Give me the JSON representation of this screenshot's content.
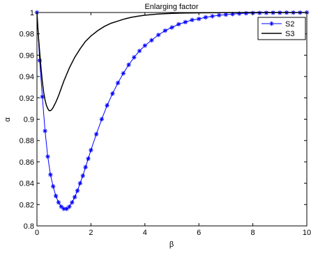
{
  "chart_data": {
    "type": "line",
    "title": "Enlarging factor",
    "xlabel": "β",
    "ylabel": "α",
    "xlim": [
      0,
      10
    ],
    "ylim": [
      0.8,
      1.0
    ],
    "xticks": [
      0,
      2,
      4,
      6,
      8,
      10
    ],
    "xtick_labels": [
      "0",
      "2",
      "4",
      "6",
      "8",
      "10"
    ],
    "yticks": [
      0.8,
      0.82,
      0.84,
      0.86,
      0.88,
      0.9,
      0.92,
      0.94,
      0.96,
      0.98,
      1.0
    ],
    "ytick_labels": [
      "0.8",
      "0.82",
      "0.84",
      "0.86",
      "0.88",
      "0.9",
      "0.92",
      "0.94",
      "0.96",
      "0.98",
      "1"
    ],
    "grid": false,
    "legend_position": "top-right",
    "series": [
      {
        "name": "S2",
        "color": "#0000ff",
        "marker": "asterisk",
        "x": [
          0,
          0.1,
          0.2,
          0.3,
          0.4,
          0.5,
          0.6,
          0.7,
          0.8,
          0.9,
          1.0,
          1.1,
          1.2,
          1.3,
          1.4,
          1.5,
          1.6,
          1.7,
          1.8,
          1.9,
          2.0,
          2.2,
          2.4,
          2.6,
          2.8,
          3.0,
          3.2,
          3.4,
          3.6,
          3.8,
          4.0,
          4.25,
          4.5,
          4.75,
          5.0,
          5.25,
          5.5,
          5.75,
          6.0,
          6.25,
          6.5,
          6.75,
          7.0,
          7.25,
          7.5,
          7.75,
          8.0,
          8.25,
          8.5,
          8.75,
          9.0,
          9.25,
          9.5,
          9.75,
          10.0
        ],
        "y": [
          1.0,
          0.955,
          0.921,
          0.889,
          0.865,
          0.848,
          0.837,
          0.828,
          0.822,
          0.818,
          0.816,
          0.816,
          0.818,
          0.822,
          0.827,
          0.833,
          0.84,
          0.847,
          0.855,
          0.863,
          0.871,
          0.886,
          0.9,
          0.913,
          0.924,
          0.934,
          0.943,
          0.951,
          0.958,
          0.964,
          0.969,
          0.974,
          0.979,
          0.983,
          0.986,
          0.989,
          0.991,
          0.993,
          0.994,
          0.9955,
          0.9965,
          0.9975,
          0.998,
          0.9985,
          0.999,
          0.9993,
          0.9995,
          0.9996,
          0.9997,
          0.9998,
          0.9998,
          0.9999,
          0.9999,
          0.9999,
          1.0
        ]
      },
      {
        "name": "S3",
        "color": "#000000",
        "marker": "none",
        "x": [
          0,
          0.05,
          0.1,
          0.15,
          0.2,
          0.25,
          0.3,
          0.35,
          0.4,
          0.45,
          0.5,
          0.55,
          0.6,
          0.7,
          0.8,
          0.9,
          1.0,
          1.2,
          1.4,
          1.6,
          1.8,
          2.0,
          2.25,
          2.5,
          2.75,
          3.0,
          3.25,
          3.5,
          3.75,
          4.0,
          4.5,
          5.0,
          5.5,
          6.0,
          7.0,
          8.0,
          9.0,
          10.0
        ],
        "y": [
          1.0,
          0.979,
          0.963,
          0.948,
          0.935,
          0.925,
          0.918,
          0.913,
          0.91,
          0.908,
          0.908,
          0.909,
          0.911,
          0.916,
          0.922,
          0.929,
          0.936,
          0.948,
          0.958,
          0.966,
          0.973,
          0.978,
          0.983,
          0.987,
          0.99,
          0.992,
          0.994,
          0.9955,
          0.9966,
          0.9975,
          0.9986,
          0.9992,
          0.9995,
          0.9997,
          0.9999,
          1.0,
          1.0,
          1.0
        ]
      }
    ]
  }
}
